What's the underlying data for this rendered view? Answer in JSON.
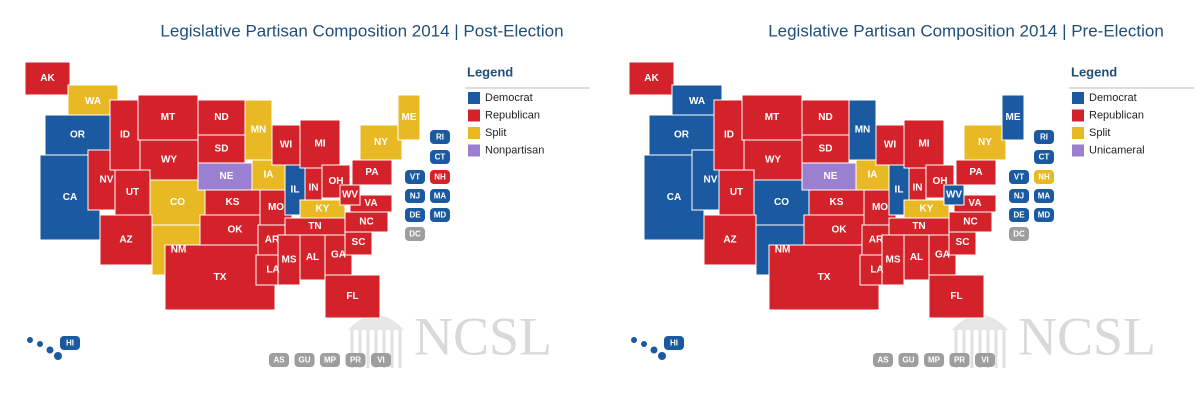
{
  "maps": [
    {
      "title": "Legislative Partisan Composition 2014 | Post-Election",
      "legend_title": "Legend",
      "legend": [
        {
          "label": "Democrat",
          "color": "#1b5aa0"
        },
        {
          "label": "Republican",
          "color": "#d3222a"
        },
        {
          "label": "Split",
          "color": "#e8b923"
        },
        {
          "label": "Nonpartisan",
          "color": "#9b7fd1"
        }
      ],
      "states": [
        {
          "label": "AK",
          "color": "#d3222a"
        },
        {
          "label": "WA",
          "color": "#e8b923"
        },
        {
          "label": "OR",
          "color": "#1b5aa0"
        },
        {
          "label": "CA",
          "color": "#1b5aa0"
        },
        {
          "label": "NV",
          "color": "#d3222a"
        },
        {
          "label": "ID",
          "color": "#d3222a"
        },
        {
          "label": "MT",
          "color": "#d3222a"
        },
        {
          "label": "WY",
          "color": "#d3222a"
        },
        {
          "label": "UT",
          "color": "#d3222a"
        },
        {
          "label": "CO",
          "color": "#e8b923"
        },
        {
          "label": "AZ",
          "color": "#d3222a"
        },
        {
          "label": "NM",
          "color": "#e8b923"
        },
        {
          "label": "ND",
          "color": "#d3222a"
        },
        {
          "label": "SD",
          "color": "#d3222a"
        },
        {
          "label": "NE",
          "color": "#9b7fd1"
        },
        {
          "label": "KS",
          "color": "#d3222a"
        },
        {
          "label": "OK",
          "color": "#d3222a"
        },
        {
          "label": "TX",
          "color": "#d3222a"
        },
        {
          "label": "MN",
          "color": "#e8b923"
        },
        {
          "label": "IA",
          "color": "#e8b923"
        },
        {
          "label": "MO",
          "color": "#d3222a"
        },
        {
          "label": "AR",
          "color": "#d3222a"
        },
        {
          "label": "LA",
          "color": "#d3222a"
        },
        {
          "label": "WI",
          "color": "#d3222a"
        },
        {
          "label": "IL",
          "color": "#1b5aa0"
        },
        {
          "label": "MI",
          "color": "#d3222a"
        },
        {
          "label": "IN",
          "color": "#d3222a"
        },
        {
          "label": "OH",
          "color": "#d3222a"
        },
        {
          "label": "KY",
          "color": "#e8b923"
        },
        {
          "label": "TN",
          "color": "#d3222a"
        },
        {
          "label": "MS",
          "color": "#d3222a"
        },
        {
          "label": "AL",
          "color": "#d3222a"
        },
        {
          "label": "GA",
          "color": "#d3222a"
        },
        {
          "label": "FL",
          "color": "#d3222a"
        },
        {
          "label": "SC",
          "color": "#d3222a"
        },
        {
          "label": "NC",
          "color": "#d3222a"
        },
        {
          "label": "VA",
          "color": "#d3222a"
        },
        {
          "label": "WV",
          "color": "#d3222a"
        },
        {
          "label": "PA",
          "color": "#d3222a"
        },
        {
          "label": "NY",
          "color": "#e8b923"
        },
        {
          "label": "ME",
          "color": "#e8b923"
        }
      ],
      "small_states": [
        {
          "label": "RI",
          "color": "#1b5aa0"
        },
        {
          "label": "CT",
          "color": "#1b5aa0"
        },
        {
          "label": "VT",
          "color": "#1b5aa0"
        },
        {
          "label": "NH",
          "color": "#d3222a"
        },
        {
          "label": "NJ",
          "color": "#1b5aa0"
        },
        {
          "label": "MA",
          "color": "#1b5aa0"
        },
        {
          "label": "DE",
          "color": "#1b5aa0"
        },
        {
          "label": "MD",
          "color": "#1b5aa0"
        },
        {
          "label": "DC",
          "color": "#9e9e9e"
        }
      ],
      "hawaii": {
        "label": "HI",
        "color": "#1b5aa0"
      },
      "territories": [
        {
          "label": "AS",
          "color": "#9e9e9e"
        },
        {
          "label": "GU",
          "color": "#9e9e9e"
        },
        {
          "label": "MP",
          "color": "#9e9e9e"
        },
        {
          "label": "PR",
          "color": "#9e9e9e"
        },
        {
          "label": "VI",
          "color": "#9e9e9e"
        }
      ],
      "watermark": "NCSL"
    },
    {
      "title": "Legislative Partisan Composition 2014 | Pre-Election",
      "legend_title": "Legend",
      "legend": [
        {
          "label": "Democrat",
          "color": "#1b5aa0"
        },
        {
          "label": "Republican",
          "color": "#d3222a"
        },
        {
          "label": "Split",
          "color": "#e8b923"
        },
        {
          "label": "Unicameral",
          "color": "#9b7fd1"
        }
      ],
      "states": [
        {
          "label": "AK",
          "color": "#d3222a"
        },
        {
          "label": "WA",
          "color": "#1b5aa0"
        },
        {
          "label": "OR",
          "color": "#1b5aa0"
        },
        {
          "label": "CA",
          "color": "#1b5aa0"
        },
        {
          "label": "NV",
          "color": "#1b5aa0"
        },
        {
          "label": "ID",
          "color": "#d3222a"
        },
        {
          "label": "MT",
          "color": "#d3222a"
        },
        {
          "label": "WY",
          "color": "#d3222a"
        },
        {
          "label": "UT",
          "color": "#d3222a"
        },
        {
          "label": "CO",
          "color": "#1b5aa0"
        },
        {
          "label": "AZ",
          "color": "#d3222a"
        },
        {
          "label": "NM",
          "color": "#1b5aa0"
        },
        {
          "label": "ND",
          "color": "#d3222a"
        },
        {
          "label": "SD",
          "color": "#d3222a"
        },
        {
          "label": "NE",
          "color": "#9b7fd1"
        },
        {
          "label": "KS",
          "color": "#d3222a"
        },
        {
          "label": "OK",
          "color": "#d3222a"
        },
        {
          "label": "TX",
          "color": "#d3222a"
        },
        {
          "label": "MN",
          "color": "#1b5aa0"
        },
        {
          "label": "IA",
          "color": "#e8b923"
        },
        {
          "label": "MO",
          "color": "#d3222a"
        },
        {
          "label": "AR",
          "color": "#d3222a"
        },
        {
          "label": "LA",
          "color": "#d3222a"
        },
        {
          "label": "WI",
          "color": "#d3222a"
        },
        {
          "label": "IL",
          "color": "#1b5aa0"
        },
        {
          "label": "MI",
          "color": "#d3222a"
        },
        {
          "label": "IN",
          "color": "#d3222a"
        },
        {
          "label": "OH",
          "color": "#d3222a"
        },
        {
          "label": "KY",
          "color": "#e8b923"
        },
        {
          "label": "TN",
          "color": "#d3222a"
        },
        {
          "label": "MS",
          "color": "#d3222a"
        },
        {
          "label": "AL",
          "color": "#d3222a"
        },
        {
          "label": "GA",
          "color": "#d3222a"
        },
        {
          "label": "FL",
          "color": "#d3222a"
        },
        {
          "label": "SC",
          "color": "#d3222a"
        },
        {
          "label": "NC",
          "color": "#d3222a"
        },
        {
          "label": "VA",
          "color": "#d3222a"
        },
        {
          "label": "WV",
          "color": "#1b5aa0"
        },
        {
          "label": "PA",
          "color": "#d3222a"
        },
        {
          "label": "NY",
          "color": "#e8b923"
        },
        {
          "label": "ME",
          "color": "#1b5aa0"
        }
      ],
      "small_states": [
        {
          "label": "RI",
          "color": "#1b5aa0"
        },
        {
          "label": "CT",
          "color": "#1b5aa0"
        },
        {
          "label": "VT",
          "color": "#1b5aa0"
        },
        {
          "label": "NH",
          "color": "#e8b923"
        },
        {
          "label": "NJ",
          "color": "#1b5aa0"
        },
        {
          "label": "MA",
          "color": "#1b5aa0"
        },
        {
          "label": "DE",
          "color": "#1b5aa0"
        },
        {
          "label": "MD",
          "color": "#1b5aa0"
        },
        {
          "label": "DC",
          "color": "#9e9e9e"
        }
      ],
      "hawaii": {
        "label": "HI",
        "color": "#1b5aa0"
      },
      "territories": [
        {
          "label": "AS",
          "color": "#9e9e9e"
        },
        {
          "label": "GU",
          "color": "#9e9e9e"
        },
        {
          "label": "MP",
          "color": "#9e9e9e"
        },
        {
          "label": "PR",
          "color": "#9e9e9e"
        },
        {
          "label": "VI",
          "color": "#9e9e9e"
        }
      ],
      "watermark": "NCSL"
    }
  ]
}
